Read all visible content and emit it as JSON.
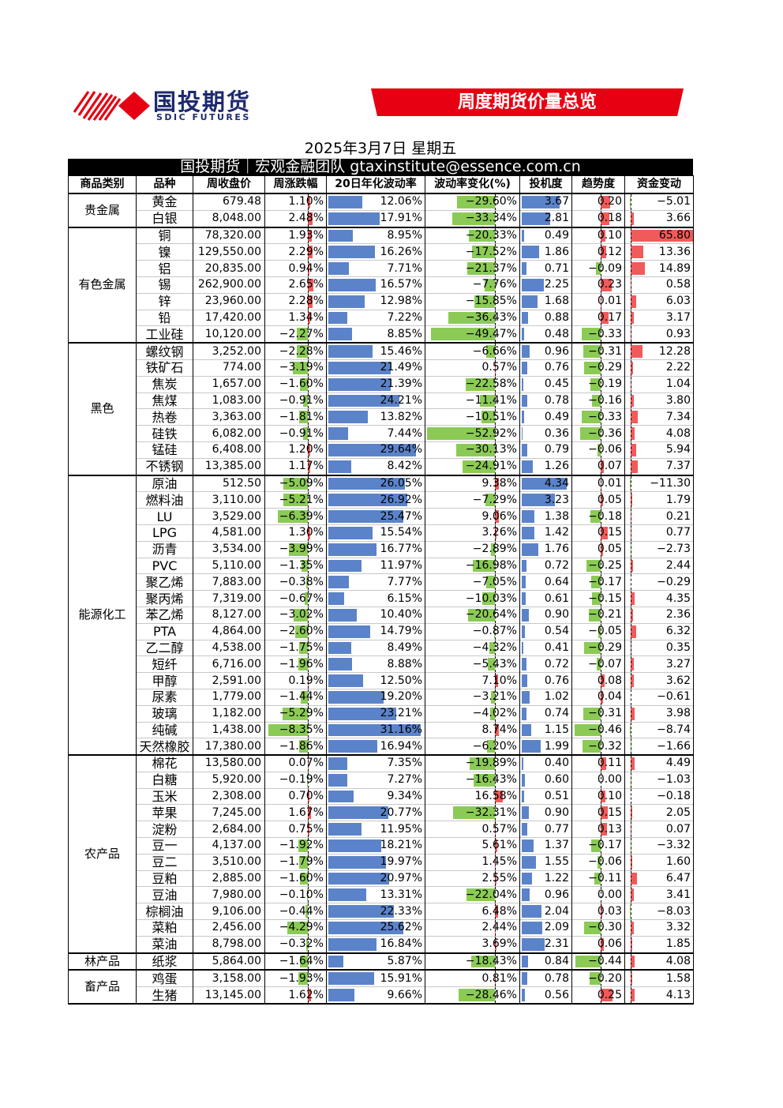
{
  "header": {
    "logo_cn": "国投期货",
    "logo_en": "SDIC FUTURES",
    "banner_title": "周度期货价量总览"
  },
  "date": "2025年3月7日 星期五",
  "team": "国投期货｜宏观金融团队 gtaxinstitute@essence.com.cn",
  "colors": {
    "brand_red": "#e60012",
    "bar_blue": "#5b83c9",
    "bar_green": "#8bcb55",
    "bar_red": "#f15a5a"
  },
  "columns": [
    "商品类别",
    "品种",
    "周收盘价",
    "周涨跌幅",
    "20日年化波动率",
    "波动率变化(%)",
    "投机度",
    "趋势度",
    "资金变动"
  ],
  "categories": [
    {
      "name": "贵金属",
      "rows": [
        {
          "n": "黄金",
          "p": "679.48",
          "c": "1.10%",
          "v": "12.06%",
          "vc": "−29.60%",
          "s": "3.67",
          "t": "0.20",
          "f": "−5.01"
        },
        {
          "n": "白银",
          "p": "8,048.00",
          "c": "2.48%",
          "v": "17.91%",
          "vc": "−33.34%",
          "s": "2.81",
          "t": "0.18",
          "f": "3.66"
        }
      ]
    },
    {
      "name": "有色金属",
      "rows": [
        {
          "n": "铜",
          "p": "78,320.00",
          "c": "1.93%",
          "v": "8.95%",
          "vc": "−20.33%",
          "s": "0.49",
          "t": "0.10",
          "f": "65.80"
        },
        {
          "n": "镍",
          "p": "129,550.00",
          "c": "2.29%",
          "v": "16.26%",
          "vc": "−17.52%",
          "s": "1.86",
          "t": "0.12",
          "f": "13.36"
        },
        {
          "n": "铝",
          "p": "20,835.00",
          "c": "0.94%",
          "v": "7.71%",
          "vc": "−21.37%",
          "s": "0.71",
          "t": "−0.09",
          "f": "14.89"
        },
        {
          "n": "锡",
          "p": "262,900.00",
          "c": "2.65%",
          "v": "16.57%",
          "vc": "−7.76%",
          "s": "2.25",
          "t": "0.23",
          "f": "0.58"
        },
        {
          "n": "锌",
          "p": "23,960.00",
          "c": "2.28%",
          "v": "12.98%",
          "vc": "−15.85%",
          "s": "1.68",
          "t": "0.01",
          "f": "6.03"
        },
        {
          "n": "铅",
          "p": "17,420.00",
          "c": "1.34%",
          "v": "7.22%",
          "vc": "−36.43%",
          "s": "0.88",
          "t": "0.17",
          "f": "3.17"
        },
        {
          "n": "工业硅",
          "p": "10,120.00",
          "c": "−2.27%",
          "v": "8.85%",
          "vc": "−49.47%",
          "s": "0.48",
          "t": "−0.33",
          "f": "0.93"
        }
      ]
    },
    {
      "name": "黑色",
      "rows": [
        {
          "n": "螺纹钢",
          "p": "3,252.00",
          "c": "−2.28%",
          "v": "15.46%",
          "vc": "−6.66%",
          "s": "0.96",
          "t": "−0.31",
          "f": "12.28"
        },
        {
          "n": "铁矿石",
          "p": "774.00",
          "c": "−3.19%",
          "v": "21.49%",
          "vc": "0.57%",
          "s": "0.76",
          "t": "−0.29",
          "f": "2.22"
        },
        {
          "n": "焦炭",
          "p": "1,657.00",
          "c": "−1.60%",
          "v": "21.39%",
          "vc": "−22.58%",
          "s": "0.45",
          "t": "−0.19",
          "f": "1.04"
        },
        {
          "n": "焦煤",
          "p": "1,083.00",
          "c": "−0.91%",
          "v": "24.21%",
          "vc": "−11.41%",
          "s": "0.78",
          "t": "−0.16",
          "f": "3.80"
        },
        {
          "n": "热卷",
          "p": "3,363.00",
          "c": "−1.81%",
          "v": "13.82%",
          "vc": "−10.51%",
          "s": "0.49",
          "t": "−0.33",
          "f": "7.34"
        },
        {
          "n": "硅铁",
          "p": "6,082.00",
          "c": "−0.91%",
          "v": "7.44%",
          "vc": "−52.92%",
          "s": "0.36",
          "t": "−0.36",
          "f": "4.08"
        },
        {
          "n": "锰硅",
          "p": "6,408.00",
          "c": "1.20%",
          "v": "29.64%",
          "vc": "−30.13%",
          "s": "0.79",
          "t": "−0.06",
          "f": "5.94"
        },
        {
          "n": "不锈钢",
          "p": "13,385.00",
          "c": "1.17%",
          "v": "8.42%",
          "vc": "−24.91%",
          "s": "1.26",
          "t": "0.07",
          "f": "7.37"
        }
      ]
    },
    {
      "name": "能源化工",
      "rows": [
        {
          "n": "原油",
          "p": "512.50",
          "c": "−5.09%",
          "v": "26.05%",
          "vc": "9.38%",
          "s": "4.34",
          "t": "0.01",
          "f": "−11.30"
        },
        {
          "n": "燃料油",
          "p": "3,110.00",
          "c": "−5.21%",
          "v": "26.92%",
          "vc": "−7.29%",
          "s": "3.23",
          "t": "0.05",
          "f": "1.79"
        },
        {
          "n": "LU",
          "p": "3,529.00",
          "c": "−6.39%",
          "v": "25.47%",
          "vc": "9.06%",
          "s": "1.38",
          "t": "−0.18",
          "f": "0.21"
        },
        {
          "n": "LPG",
          "p": "4,581.00",
          "c": "1.30%",
          "v": "15.54%",
          "vc": "3.26%",
          "s": "1.42",
          "t": "0.15",
          "f": "0.77"
        },
        {
          "n": "沥青",
          "p": "3,534.00",
          "c": "−3.99%",
          "v": "16.77%",
          "vc": "−2.89%",
          "s": "1.76",
          "t": "0.05",
          "f": "−2.73"
        },
        {
          "n": "PVC",
          "p": "5,110.00",
          "c": "−1.35%",
          "v": "11.97%",
          "vc": "−16.98%",
          "s": "0.72",
          "t": "−0.25",
          "f": "2.44"
        },
        {
          "n": "聚乙烯",
          "p": "7,883.00",
          "c": "−0.38%",
          "v": "7.77%",
          "vc": "−7.05%",
          "s": "0.64",
          "t": "−0.17",
          "f": "−0.29"
        },
        {
          "n": "聚丙烯",
          "p": "7,319.00",
          "c": "−0.67%",
          "v": "6.15%",
          "vc": "−10.03%",
          "s": "0.61",
          "t": "−0.15",
          "f": "4.35"
        },
        {
          "n": "苯乙烯",
          "p": "8,127.00",
          "c": "−3.02%",
          "v": "10.40%",
          "vc": "−20.64%",
          "s": "0.90",
          "t": "−0.21",
          "f": "2.36"
        },
        {
          "n": "PTA",
          "p": "4,864.00",
          "c": "−2.60%",
          "v": "14.79%",
          "vc": "−0.87%",
          "s": "0.54",
          "t": "−0.05",
          "f": "6.32"
        },
        {
          "n": "乙二醇",
          "p": "4,538.00",
          "c": "−1.75%",
          "v": "8.49%",
          "vc": "−4.32%",
          "s": "0.41",
          "t": "−0.29",
          "f": "0.35"
        },
        {
          "n": "短纤",
          "p": "6,716.00",
          "c": "−1.96%",
          "v": "8.88%",
          "vc": "−5.43%",
          "s": "0.72",
          "t": "−0.07",
          "f": "3.27"
        },
        {
          "n": "甲醇",
          "p": "2,591.00",
          "c": "0.19%",
          "v": "12.50%",
          "vc": "7.10%",
          "s": "0.76",
          "t": "0.08",
          "f": "3.62"
        },
        {
          "n": "尿素",
          "p": "1,779.00",
          "c": "−1.44%",
          "v": "19.20%",
          "vc": "−3.21%",
          "s": "1.02",
          "t": "0.04",
          "f": "−0.61"
        },
        {
          "n": "玻璃",
          "p": "1,182.00",
          "c": "−5.29%",
          "v": "23.21%",
          "vc": "−4.02%",
          "s": "0.74",
          "t": "−0.31",
          "f": "3.98"
        },
        {
          "n": "纯碱",
          "p": "1,438.00",
          "c": "−8.35%",
          "v": "31.16%",
          "vc": "8.74%",
          "s": "1.15",
          "t": "−0.46",
          "f": "−8.74"
        },
        {
          "n": "天然橡胶",
          "p": "17,380.00",
          "c": "−1.86%",
          "v": "16.94%",
          "vc": "−6.20%",
          "s": "1.99",
          "t": "−0.32",
          "f": "−1.66"
        }
      ]
    },
    {
      "name": "农产品",
      "rows": [
        {
          "n": "棉花",
          "p": "13,580.00",
          "c": "0.07%",
          "v": "7.35%",
          "vc": "−19.89%",
          "s": "0.40",
          "t": "0.11",
          "f": "4.49"
        },
        {
          "n": "白糖",
          "p": "5,920.00",
          "c": "−0.19%",
          "v": "7.27%",
          "vc": "−16.43%",
          "s": "0.60",
          "t": "0.00",
          "f": "−1.03"
        },
        {
          "n": "玉米",
          "p": "2,308.00",
          "c": "0.70%",
          "v": "9.34%",
          "vc": "16.58%",
          "s": "0.51",
          "t": "0.10",
          "f": "−0.18"
        },
        {
          "n": "苹果",
          "p": "7,245.00",
          "c": "1.67%",
          "v": "20.77%",
          "vc": "−32.31%",
          "s": "0.90",
          "t": "0.15",
          "f": "2.05"
        },
        {
          "n": "淀粉",
          "p": "2,684.00",
          "c": "0.75%",
          "v": "11.95%",
          "vc": "0.57%",
          "s": "0.77",
          "t": "0.13",
          "f": "0.07"
        },
        {
          "n": "豆一",
          "p": "4,137.00",
          "c": "−1.92%",
          "v": "18.21%",
          "vc": "5.61%",
          "s": "1.37",
          "t": "−0.17",
          "f": "−3.32"
        },
        {
          "n": "豆二",
          "p": "3,510.00",
          "c": "−1.79%",
          "v": "19.97%",
          "vc": "1.45%",
          "s": "1.55",
          "t": "−0.06",
          "f": "1.60"
        },
        {
          "n": "豆粕",
          "p": "2,885.00",
          "c": "−1.60%",
          "v": "20.97%",
          "vc": "2.55%",
          "s": "1.22",
          "t": "−0.11",
          "f": "6.47"
        },
        {
          "n": "豆油",
          "p": "7,980.00",
          "c": "−0.10%",
          "v": "13.31%",
          "vc": "−22.04%",
          "s": "0.96",
          "t": "0.00",
          "f": "3.41"
        },
        {
          "n": "棕榈油",
          "p": "9,106.00",
          "c": "−0.44%",
          "v": "22.33%",
          "vc": "6.48%",
          "s": "2.04",
          "t": "0.03",
          "f": "−8.03"
        },
        {
          "n": "菜粕",
          "p": "2,456.00",
          "c": "−4.29%",
          "v": "25.62%",
          "vc": "2.44%",
          "s": "2.09",
          "t": "−0.30",
          "f": "3.32"
        },
        {
          "n": "菜油",
          "p": "8,798.00",
          "c": "−0.32%",
          "v": "16.84%",
          "vc": "3.69%",
          "s": "2.31",
          "t": "0.06",
          "f": "1.85"
        }
      ]
    },
    {
      "name": "林产品",
      "rows": [
        {
          "n": "纸浆",
          "p": "5,864.00",
          "c": "−1.64%",
          "v": "5.87%",
          "vc": "−18.43%",
          "s": "0.84",
          "t": "−0.44",
          "f": "4.08"
        }
      ]
    },
    {
      "name": "畜产品",
      "rows": [
        {
          "n": "鸡蛋",
          "p": "3,158.00",
          "c": "−1.93%",
          "v": "15.91%",
          "vc": "0.81%",
          "s": "0.78",
          "t": "−0.20",
          "f": "1.58"
        },
        {
          "n": "生猪",
          "p": "13,145.00",
          "c": "1.62%",
          "v": "9.66%",
          "vc": "−28.46%",
          "s": "0.56",
          "t": "0.25",
          "f": "4.13"
        }
      ]
    }
  ]
}
